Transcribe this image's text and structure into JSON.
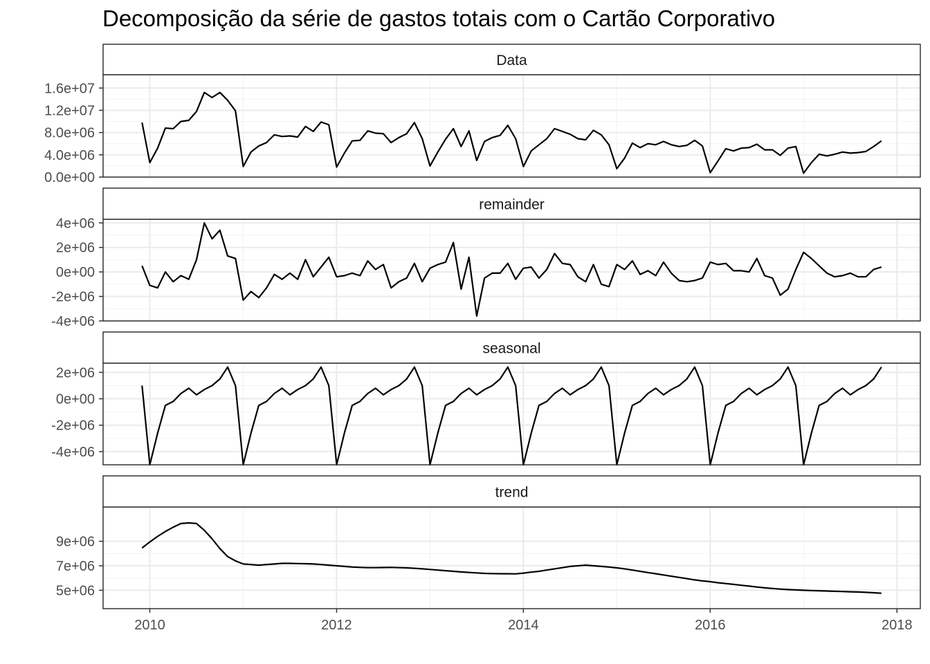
{
  "chart_data": {
    "type": "line",
    "title": "Decomposição da série de gastos totais com o Cartão Corporativo",
    "xlabel": "",
    "ylabel": "",
    "grid": true,
    "x_start": 2009.917,
    "x_step": 0.083333,
    "x_range": [
      2009.5,
      2018.25
    ],
    "x_ticks": [
      {
        "value": 2010,
        "label": "2010"
      },
      {
        "value": 2012,
        "label": "2012"
      },
      {
        "value": 2014,
        "label": "2014"
      },
      {
        "value": 2016,
        "label": "2016"
      },
      {
        "value": 2018,
        "label": "2018"
      }
    ],
    "panels": [
      {
        "name": "Data",
        "ylim": [
          0,
          18400000
        ],
        "y_ticks": [
          {
            "value": 0,
            "label": "0.0e+00"
          },
          {
            "value": 4000000,
            "label": "4.0e+06"
          },
          {
            "value": 8000000,
            "label": "8.0e+06"
          },
          {
            "value": 12000000,
            "label": "1.2e+07"
          },
          {
            "value": 16000000,
            "label": "1.6e+07"
          }
        ],
        "values": [
          9800000,
          2600000,
          5200000,
          8800000,
          8700000,
          10000000,
          10200000,
          11800000,
          15200000,
          14300000,
          15200000,
          13800000,
          11900000,
          1900000,
          4500000,
          5600000,
          6200000,
          7600000,
          7300000,
          7400000,
          7200000,
          9100000,
          8200000,
          9900000,
          9400000,
          1800000,
          4300000,
          6500000,
          6600000,
          8300000,
          7900000,
          7800000,
          6200000,
          7100000,
          7800000,
          9800000,
          6900000,
          2000000,
          4500000,
          6800000,
          8700000,
          5500000,
          8300000,
          3000000,
          6400000,
          7100000,
          7500000,
          9300000,
          6900000,
          1900000,
          4700000,
          5800000,
          6900000,
          8700000,
          8200000,
          7700000,
          6900000,
          6700000,
          8400000,
          7600000,
          5800000,
          1500000,
          3400000,
          6100000,
          5300000,
          6000000,
          5800000,
          6400000,
          5800000,
          5500000,
          5700000,
          6600000,
          5600000,
          800000,
          2900000,
          5100000,
          4700000,
          5200000,
          5300000,
          5900000,
          4900000,
          4900000,
          3900000,
          5200000,
          5500000,
          700000,
          2600000,
          4100000,
          3800000,
          4100000,
          4500000,
          4300000,
          4400000,
          4600000,
          5500000,
          6500000
        ]
      },
      {
        "name": "remainder",
        "ylim": [
          -4000000,
          4300000
        ],
        "y_ticks": [
          {
            "value": -4000000,
            "label": "-4e+06"
          },
          {
            "value": -2000000,
            "label": "-2e+06"
          },
          {
            "value": 0,
            "label": "0e+00"
          },
          {
            "value": 2000000,
            "label": "2e+06"
          },
          {
            "value": 4000000,
            "label": "4e+06"
          }
        ],
        "values": [
          500000,
          -1100000,
          -1300000,
          0,
          -800000,
          -300000,
          -600000,
          1000000,
          4000000,
          2700000,
          3400000,
          1300000,
          1100000,
          -2300000,
          -1600000,
          -2100000,
          -1300000,
          -200000,
          -600000,
          -100000,
          -600000,
          1000000,
          -400000,
          400000,
          1200000,
          -400000,
          -300000,
          -100000,
          -300000,
          900000,
          200000,
          600000,
          -1300000,
          -800000,
          -500000,
          700000,
          -800000,
          300000,
          600000,
          800000,
          2400000,
          -1400000,
          1200000,
          -3600000,
          -500000,
          -100000,
          -100000,
          700000,
          -600000,
          300000,
          400000,
          -500000,
          200000,
          1500000,
          700000,
          600000,
          -400000,
          -800000,
          600000,
          -1000000,
          -1200000,
          600000,
          200000,
          900000,
          -200000,
          100000,
          -300000,
          800000,
          -100000,
          -700000,
          -800000,
          -700000,
          -500000,
          800000,
          600000,
          700000,
          100000,
          100000,
          0,
          1100000,
          -300000,
          -500000,
          -1900000,
          -1400000,
          200000,
          1600000,
          1100000,
          500000,
          -100000,
          -400000,
          -300000,
          -100000,
          -400000,
          -400000,
          200000,
          400000
        ]
      },
      {
        "name": "seasonal",
        "ylim": [
          -5000000,
          2700000
        ],
        "y_ticks": [
          {
            "value": -4000000,
            "label": "-4e+06"
          },
          {
            "value": -2000000,
            "label": "-2e+06"
          },
          {
            "value": 0,
            "label": "0e+00"
          },
          {
            "value": 2000000,
            "label": "2e+06"
          }
        ],
        "values": [
          1000000,
          -5000000,
          -2600000,
          -500000,
          -200000,
          400000,
          800000,
          300000,
          700000,
          1000000,
          1500000,
          2400000,
          1000000,
          -5000000,
          -2600000,
          -500000,
          -200000,
          400000,
          800000,
          300000,
          700000,
          1000000,
          1500000,
          2400000,
          1000000,
          -5000000,
          -2600000,
          -500000,
          -200000,
          400000,
          800000,
          300000,
          700000,
          1000000,
          1500000,
          2400000,
          1000000,
          -5000000,
          -2600000,
          -500000,
          -200000,
          400000,
          800000,
          300000,
          700000,
          1000000,
          1500000,
          2400000,
          1000000,
          -5000000,
          -2600000,
          -500000,
          -200000,
          400000,
          800000,
          300000,
          700000,
          1000000,
          1500000,
          2400000,
          1000000,
          -5000000,
          -2600000,
          -500000,
          -200000,
          400000,
          800000,
          300000,
          700000,
          1000000,
          1500000,
          2400000,
          1000000,
          -5000000,
          -2600000,
          -500000,
          -200000,
          400000,
          800000,
          300000,
          700000,
          1000000,
          1500000,
          2400000,
          1000000,
          -5000000,
          -2600000,
          -500000,
          -200000,
          400000,
          800000,
          300000,
          700000,
          1000000,
          1500000,
          2400000
        ]
      },
      {
        "name": "trend",
        "ylim": [
          3500000,
          11800000
        ],
        "y_ticks": [
          {
            "value": 5000000,
            "label": "5e+06"
          },
          {
            "value": 7000000,
            "label": "7e+06"
          },
          {
            "value": 9000000,
            "label": "9e+06"
          }
        ],
        "values": [
          8450000,
          8950000,
          9400000,
          9800000,
          10150000,
          10450000,
          10500000,
          10450000,
          9900000,
          9200000,
          8400000,
          7750000,
          7400000,
          7150000,
          7100000,
          7050000,
          7100000,
          7150000,
          7200000,
          7200000,
          7180000,
          7170000,
          7150000,
          7100000,
          7050000,
          7000000,
          6950000,
          6900000,
          6870000,
          6850000,
          6850000,
          6860000,
          6870000,
          6850000,
          6830000,
          6800000,
          6750000,
          6700000,
          6650000,
          6600000,
          6550000,
          6500000,
          6460000,
          6420000,
          6380000,
          6360000,
          6350000,
          6350000,
          6340000,
          6400000,
          6480000,
          6550000,
          6650000,
          6750000,
          6850000,
          6950000,
          7000000,
          7050000,
          7000000,
          6950000,
          6900000,
          6830000,
          6750000,
          6650000,
          6550000,
          6450000,
          6350000,
          6250000,
          6150000,
          6050000,
          5950000,
          5850000,
          5770000,
          5700000,
          5620000,
          5550000,
          5480000,
          5410000,
          5340000,
          5270000,
          5200000,
          5150000,
          5100000,
          5060000,
          5030000,
          5000000,
          4980000,
          4960000,
          4940000,
          4920000,
          4900000,
          4880000,
          4860000,
          4830000,
          4800000,
          4760000
        ]
      }
    ]
  }
}
